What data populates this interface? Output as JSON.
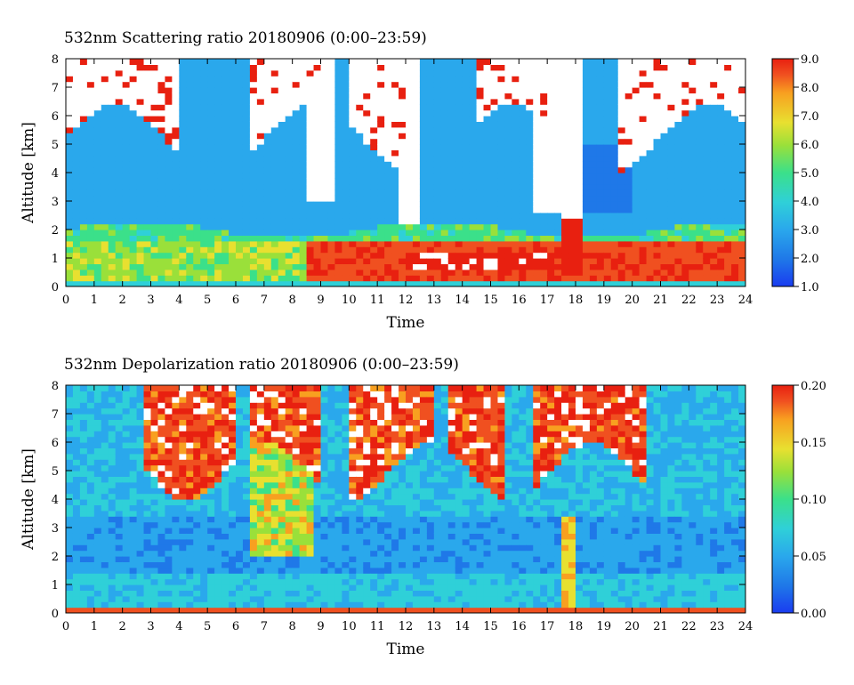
{
  "chart_data": [
    {
      "type": "heatmap",
      "title": "532nm Scattering ratio  20180906 (0:00–23:59)",
      "xlabel": "Time",
      "ylabel": "Altitude [km]",
      "xlim": [
        0,
        24
      ],
      "ylim": [
        0,
        8
      ],
      "x_ticks": [
        "0",
        "1",
        "2",
        "3",
        "4",
        "5",
        "6",
        "7",
        "8",
        "9",
        "10",
        "11",
        "12",
        "13",
        "14",
        "15",
        "16",
        "17",
        "18",
        "19",
        "20",
        "21",
        "22",
        "23",
        "24"
      ],
      "y_ticks": [
        "0",
        "1",
        "2",
        "3",
        "4",
        "5",
        "6",
        "7",
        "8"
      ],
      "colorbar": {
        "min": 1.0,
        "max": 9.0,
        "ticks": [
          "1.0",
          "2.0",
          "3.0",
          "4.0",
          "5.0",
          "6.0",
          "7.0",
          "8.0",
          "9.0"
        ]
      },
      "features": {
        "boundary_layer_top_km": 2.0,
        "high_scattering_layer_km": [
          0.5,
          1.5
        ],
        "thick_cloud_periods_h": [
          [
            9.5,
            11.5
          ],
          [
            12.5,
            13.5
          ],
          [
            17.5,
            18.2
          ],
          [
            20.5,
            23.0
          ]
        ]
      }
    },
    {
      "type": "heatmap",
      "title": "532nm Depolarization ratio  20180906 (0:00–23:59)",
      "xlabel": "Time",
      "ylabel": "Altitude [km]",
      "xlim": [
        0,
        24
      ],
      "ylim": [
        0,
        8
      ],
      "x_ticks": [
        "0",
        "1",
        "2",
        "3",
        "4",
        "5",
        "6",
        "7",
        "8",
        "9",
        "10",
        "11",
        "12",
        "13",
        "14",
        "15",
        "16",
        "17",
        "18",
        "19",
        "20",
        "21",
        "22",
        "23",
        "24"
      ],
      "y_ticks": [
        "0",
        "1",
        "2",
        "3",
        "4",
        "5",
        "6",
        "7",
        "8"
      ],
      "colorbar": {
        "min": 0.0,
        "max": 0.2,
        "ticks": [
          "0.00",
          "0.05",
          "0.10",
          "0.15",
          "0.20"
        ]
      },
      "features": {
        "high_depolarization_altitude_km": [
          5.0,
          8.0
        ],
        "dust_layer_km": [
          1.5,
          3.0
        ]
      }
    }
  ],
  "palette": [
    "#1a3cf0",
    "#1f78e8",
    "#2aa8ec",
    "#2fd0d8",
    "#3be08a",
    "#9ae03a",
    "#e8e030",
    "#f8a020",
    "#f05020",
    "#e82010"
  ]
}
